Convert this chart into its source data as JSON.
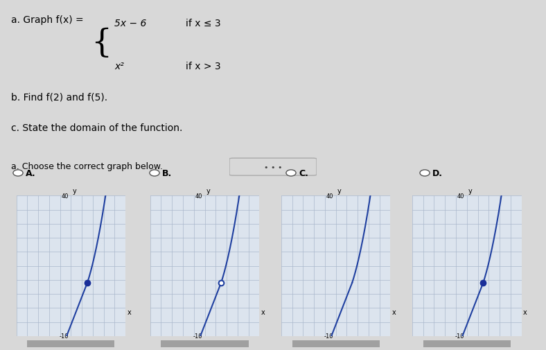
{
  "title_text": "a. Graph f(x) =",
  "piece1_expr": "5x − 6",
  "piece1_cond": "if x ≤ 3",
  "piece2_expr": "x²",
  "piece2_cond": "if x > 3",
  "line_b": "b. Find f(2) and f(5).",
  "line_c": "c. State the domain of the function.",
  "section_label": "a. Choose the correct graph below.",
  "options": [
    "A.",
    "B.",
    "C.",
    "D."
  ],
  "ylim": [
    -10,
    40
  ],
  "xlim": [
    -10,
    10
  ],
  "background_top": "#f2f2f2",
  "background_bottom": "#eeeeee",
  "grid_color": "#aab8cc",
  "graph_bg": "#dce4ee",
  "line_color": "#2040a0",
  "dot_filled_color": "#1a2e99",
  "dot_open_edge": "#2040a0",
  "graphs": [
    {
      "label": "A",
      "linear_filled": true,
      "parabola_filled": false
    },
    {
      "label": "B",
      "linear_filled": false,
      "parabola_filled": false
    },
    {
      "label": "C",
      "linear_filled": false,
      "parabola_filled": false,
      "no_dots": true
    },
    {
      "label": "D",
      "linear_filled": false,
      "parabola_filled": true
    }
  ]
}
